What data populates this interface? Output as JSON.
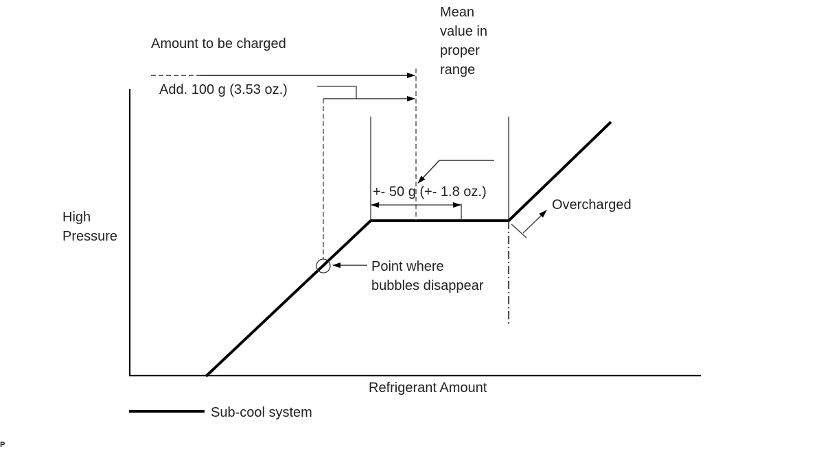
{
  "labels": {
    "amount_to_be_charged": "Amount to be charged",
    "mean_value": [
      "Mean",
      "value in",
      "proper",
      "range"
    ],
    "add_amount": "Add. 100 g (3.53 oz.)",
    "tolerance": "+- 50 g (+- 1.8 oz.)",
    "overcharged": "Overcharged",
    "y_axis": [
      "High",
      "Pressure"
    ],
    "bubbles_point": [
      "Point where",
      "bubbles disappear"
    ],
    "x_axis": "Refrigerant Amount",
    "legend_sub_cool": "Sub-cool system",
    "corner_mark": "P"
  }
}
